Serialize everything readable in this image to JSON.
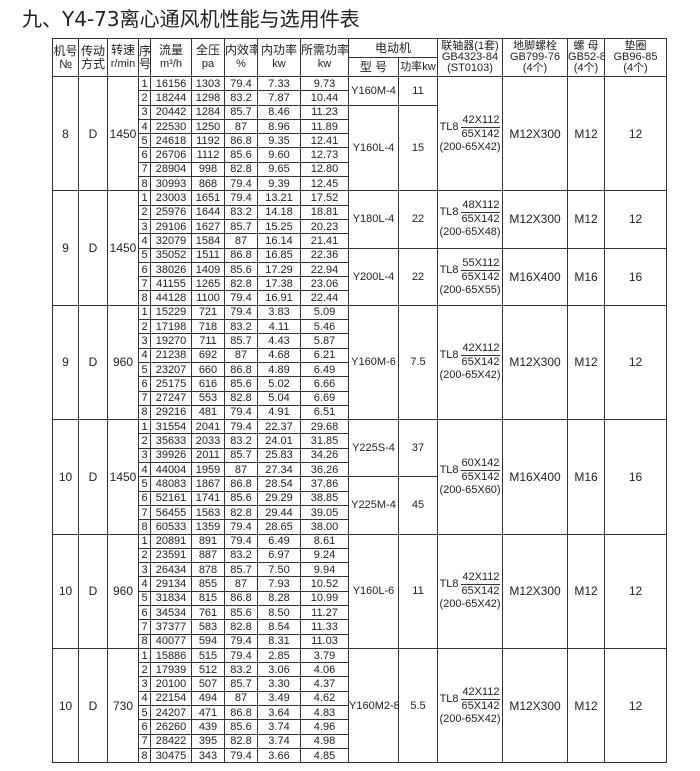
{
  "title": "九、Y4-73离心通风机性能与选用件表",
  "headers": {
    "machine_no": [
      "机号",
      "№"
    ],
    "drive": [
      "传动",
      "方式"
    ],
    "speed": [
      "转速",
      "r/min"
    ],
    "seq": [
      "序",
      "号"
    ],
    "flow": [
      "流量",
      "m³/h"
    ],
    "pressure": [
      "全压",
      "pa"
    ],
    "efficiency": [
      "内效率",
      "%"
    ],
    "inner_power": [
      "内功率",
      "kw"
    ],
    "required_power": [
      "所需功率",
      "kw"
    ],
    "motor": "电动机",
    "motor_type": "型 号",
    "motor_kw": "功率kw",
    "coupling": [
      "联轴器(1套)",
      "GB4323-84",
      "(ST0103)"
    ],
    "bolt": [
      "地脚螺栓",
      "GB799-76",
      "(4个)"
    ],
    "nut": [
      "螺 母",
      "GB52-86",
      "(4个)"
    ],
    "washer": [
      "垫圈",
      "GB96-85",
      "(4个)"
    ]
  },
  "groups": [
    {
      "machine_no": "8",
      "drive": "D",
      "speed": "1450",
      "rows": [
        [
          "1",
          "16156",
          "1303",
          "79.4",
          "7.33",
          "9.73"
        ],
        [
          "2",
          "18244",
          "1298",
          "83.2",
          "7.87",
          "10.44"
        ],
        [
          "3",
          "20442",
          "1284",
          "85.7",
          "8.46",
          "11.23"
        ],
        [
          "4",
          "22530",
          "1250",
          "87",
          "8.96",
          "11.89"
        ],
        [
          "5",
          "24618",
          "1192",
          "86.8",
          "9.35",
          "12.41"
        ],
        [
          "6",
          "26706",
          "1112",
          "85.6",
          "9.60",
          "12.73"
        ],
        [
          "7",
          "28904",
          "998",
          "82.8",
          "9.65",
          "12.80"
        ],
        [
          "8",
          "30993",
          "868",
          "79.4",
          "9.39",
          "12.45"
        ]
      ],
      "motors": [
        {
          "type": "Y160M-4",
          "kw": "11",
          "seqs": [
            1,
            2
          ]
        },
        {
          "type": "Y160L-4",
          "kw": "15",
          "seqs": [
            3,
            4,
            5,
            6,
            7,
            8
          ]
        }
      ],
      "couplings": [
        {
          "model": "TL8",
          "top": "42X112",
          "bottom": "65X142",
          "note": "(200-65X42)",
          "bolt": "M12X300",
          "nut": "M12",
          "washer": "12",
          "seqs": [
            1,
            2,
            3,
            4,
            5,
            6,
            7,
            8
          ]
        }
      ]
    },
    {
      "machine_no": "9",
      "drive": "D",
      "speed": "1450",
      "rows": [
        [
          "1",
          "23003",
          "1651",
          "79.4",
          "13.21",
          "17.52"
        ],
        [
          "2",
          "25976",
          "1644",
          "83.2",
          "14.18",
          "18.81"
        ],
        [
          "3",
          "29106",
          "1627",
          "85.7",
          "15.25",
          "20.23"
        ],
        [
          "4",
          "32079",
          "1584",
          "87",
          "16.14",
          "21.41"
        ],
        [
          "5",
          "35052",
          "1511",
          "86.8",
          "16.85",
          "22.36"
        ],
        [
          "6",
          "38026",
          "1409",
          "85.6",
          "17.29",
          "22.94"
        ],
        [
          "7",
          "41155",
          "1265",
          "82.8",
          "17.38",
          "23.06"
        ],
        [
          "8",
          "44128",
          "1100",
          "79.4",
          "16.91",
          "22.44"
        ]
      ],
      "motors": [
        {
          "type": "Y180L-4",
          "kw": "22",
          "seqs": [
            1,
            2,
            3,
            4
          ]
        },
        {
          "type": "Y200L-4",
          "kw": "22",
          "seqs": [
            5,
            6,
            7,
            8
          ]
        }
      ],
      "couplings": [
        {
          "model": "TL8",
          "top": "48X112",
          "bottom": "65X142",
          "note": "(200-65X48)",
          "bolt": "M12X300",
          "nut": "M12",
          "washer": "12",
          "seqs": [
            1,
            2,
            3,
            4
          ]
        },
        {
          "model": "TL8",
          "top": "55X112",
          "bottom": "65X142",
          "note": "(200-65X55)",
          "bolt": "M16X400",
          "nut": "M16",
          "washer": "16",
          "seqs": [
            5,
            6,
            7,
            8
          ]
        }
      ]
    },
    {
      "machine_no": "9",
      "drive": "D",
      "speed": "960",
      "rows": [
        [
          "1",
          "15229",
          "721",
          "79.4",
          "3.83",
          "5.09"
        ],
        [
          "2",
          "17198",
          "718",
          "83.2",
          "4.11",
          "5.46"
        ],
        [
          "3",
          "19270",
          "711",
          "85.7",
          "4.43",
          "5.87"
        ],
        [
          "4",
          "21238",
          "692",
          "87",
          "4.68",
          "6.21"
        ],
        [
          "5",
          "23207",
          "660",
          "86.8",
          "4.89",
          "6.49"
        ],
        [
          "6",
          "25175",
          "616",
          "85.6",
          "5.02",
          "6.66"
        ],
        [
          "7",
          "27247",
          "553",
          "82.8",
          "5.04",
          "6.69"
        ],
        [
          "8",
          "29216",
          "481",
          "79.4",
          "4.91",
          "6.51"
        ]
      ],
      "motors": [
        {
          "type": "Y160M-6",
          "kw": "7.5",
          "seqs": [
            1,
            2,
            3,
            4,
            5,
            6,
            7,
            8
          ]
        }
      ],
      "couplings": [
        {
          "model": "TL8",
          "top": "42X112",
          "bottom": "65X142",
          "note": "(200-65X42)",
          "bolt": "M12X300",
          "nut": "M12",
          "washer": "12",
          "seqs": [
            1,
            2,
            3,
            4,
            5,
            6,
            7,
            8
          ]
        }
      ]
    },
    {
      "machine_no": "10",
      "drive": "D",
      "speed": "1450",
      "rows": [
        [
          "1",
          "31554",
          "2041",
          "79.4",
          "22.37",
          "29.68"
        ],
        [
          "2",
          "35633",
          "2033",
          "83.2",
          "24.01",
          "31.85"
        ],
        [
          "3",
          "39926",
          "2011",
          "85.7",
          "25.83",
          "34.26"
        ],
        [
          "4",
          "44004",
          "1959",
          "87",
          "27.34",
          "36.26"
        ],
        [
          "5",
          "48083",
          "1867",
          "86.8",
          "28.54",
          "37.86"
        ],
        [
          "6",
          "52161",
          "1741",
          "85.6",
          "29.29",
          "38.85"
        ],
        [
          "7",
          "56455",
          "1563",
          "82.8",
          "29.44",
          "39.05"
        ],
        [
          "8",
          "60533",
          "1359",
          "79.4",
          "28.65",
          "38.00"
        ]
      ],
      "motors": [
        {
          "type": "Y225S-4",
          "kw": "37",
          "seqs": [
            1,
            2,
            3,
            4
          ]
        },
        {
          "type": "Y225M-4",
          "kw": "45",
          "seqs": [
            5,
            6,
            7,
            8
          ]
        }
      ],
      "couplings": [
        {
          "model": "TL8",
          "top": "60X142",
          "bottom": "65X142",
          "note": "(200-65X60)",
          "bolt": "M16X400",
          "nut": "M16",
          "washer": "16",
          "seqs": [
            1,
            2,
            3,
            4,
            5,
            6,
            7,
            8
          ]
        }
      ]
    },
    {
      "machine_no": "10",
      "drive": "D",
      "speed": "960",
      "rows": [
        [
          "1",
          "20891",
          "891",
          "79.4",
          "6.49",
          "8.61"
        ],
        [
          "2",
          "23591",
          "887",
          "83.2",
          "6.97",
          "9.24"
        ],
        [
          "3",
          "26434",
          "878",
          "85.7",
          "7.50",
          "9.94"
        ],
        [
          "4",
          "29134",
          "855",
          "87",
          "7.93",
          "10.52"
        ],
        [
          "5",
          "31834",
          "815",
          "86.8",
          "8.28",
          "10.99"
        ],
        [
          "6",
          "34534",
          "761",
          "85.6",
          "8.50",
          "11.27"
        ],
        [
          "7",
          "37377",
          "583",
          "82.8",
          "8.54",
          "11.33"
        ],
        [
          "8",
          "40077",
          "594",
          "79.4",
          "8.31",
          "11.03"
        ]
      ],
      "motors": [
        {
          "type": "Y160L-6",
          "kw": "11",
          "seqs": [
            1,
            2,
            3,
            4,
            5,
            6,
            7,
            8
          ]
        }
      ],
      "couplings": [
        {
          "model": "TL8",
          "top": "42X112",
          "bottom": "65X142",
          "note": "(200-65X42)",
          "bolt": "M12X300",
          "nut": "M12",
          "washer": "12",
          "seqs": [
            1,
            2,
            3,
            4,
            5,
            6,
            7,
            8
          ]
        }
      ]
    },
    {
      "machine_no": "10",
      "drive": "D",
      "speed": "730",
      "rows": [
        [
          "1",
          "15886",
          "515",
          "79.4",
          "2.85",
          "3.79"
        ],
        [
          "2",
          "17939",
          "512",
          "83.2",
          "3.06",
          "4.06"
        ],
        [
          "3",
          "20100",
          "507",
          "85.7",
          "3.30",
          "4.37"
        ],
        [
          "4",
          "22154",
          "494",
          "87",
          "3.49",
          "4.62"
        ],
        [
          "5",
          "24207",
          "471",
          "86.8",
          "3.64",
          "4.83"
        ],
        [
          "6",
          "26260",
          "439",
          "85.6",
          "3.74",
          "4.96"
        ],
        [
          "7",
          "28422",
          "395",
          "82.8",
          "3.74",
          "4.98"
        ],
        [
          "8",
          "30475",
          "343",
          "79.4",
          "3.66",
          "4.85"
        ]
      ],
      "motors": [
        {
          "type": "Y160M2-8",
          "kw": "5.5",
          "seqs": [
            1,
            2,
            3,
            4,
            5,
            6,
            7,
            8
          ]
        }
      ],
      "couplings": [
        {
          "model": "TL8",
          "top": "42X112",
          "bottom": "65X142",
          "note": "(200-65X42)",
          "bolt": "M12X300",
          "nut": "M12",
          "washer": "12",
          "seqs": [
            1,
            2,
            3,
            4,
            5,
            6,
            7,
            8
          ]
        }
      ]
    }
  ]
}
